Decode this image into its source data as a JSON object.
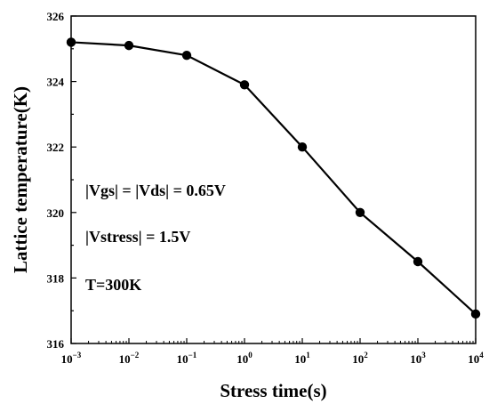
{
  "chart_data": {
    "type": "line",
    "xscale": "log",
    "xlabel": "Stress time(s)",
    "ylabel": "Lattice temperature(K)",
    "xlim": [
      0.001,
      10000
    ],
    "ylim": [
      316,
      326
    ],
    "x_ticks": [
      {
        "value": 0.001,
        "base": "10",
        "exp": "−3"
      },
      {
        "value": 0.01,
        "base": "10",
        "exp": "−2"
      },
      {
        "value": 0.1,
        "base": "10",
        "exp": "−1"
      },
      {
        "value": 1,
        "base": "10",
        "exp": "0"
      },
      {
        "value": 10,
        "base": "10",
        "exp": "1"
      },
      {
        "value": 100,
        "base": "10",
        "exp": "2"
      },
      {
        "value": 1000,
        "base": "10",
        "exp": "3"
      },
      {
        "value": 10000,
        "base": "10",
        "exp": "4"
      }
    ],
    "y_ticks": [
      316,
      318,
      320,
      322,
      324,
      326
    ],
    "grid": false,
    "series": [
      {
        "x": [
          0.001,
          0.01,
          0.1,
          1,
          10,
          100,
          1000,
          10000
        ],
        "y": [
          325.2,
          325.1,
          324.8,
          323.9,
          322.0,
          320.0,
          318.5,
          316.9
        ],
        "color": "#000000",
        "marker": "circle"
      }
    ],
    "annotations": [
      "|Vgs| = |Vds| = 0.65V",
      "|Vstress| = 1.5V",
      "T=300K"
    ]
  }
}
